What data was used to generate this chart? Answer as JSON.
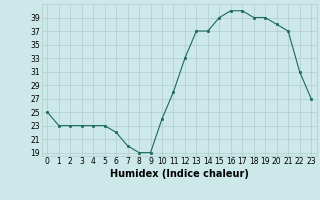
{
  "x": [
    0,
    1,
    2,
    3,
    4,
    5,
    6,
    7,
    8,
    9,
    10,
    11,
    12,
    13,
    14,
    15,
    16,
    17,
    18,
    19,
    20,
    21,
    22,
    23
  ],
  "y": [
    25,
    23,
    23,
    23,
    23,
    23,
    22,
    20,
    19,
    19,
    24,
    28,
    33,
    37,
    37,
    39,
    40,
    40,
    39,
    39,
    38,
    37,
    31,
    27
  ],
  "line_color": "#1a6b5a",
  "marker_color": "#1a6b5a",
  "bg_color": "#cce8e8",
  "grid_color": "#b0cccc",
  "xlabel": "Humidex (Indice chaleur)",
  "ylim": [
    18.5,
    41
  ],
  "xlim": [
    -0.5,
    23.5
  ],
  "yticks": [
    19,
    21,
    23,
    25,
    27,
    29,
    31,
    33,
    35,
    37,
    39
  ],
  "xticks": [
    0,
    1,
    2,
    3,
    4,
    5,
    6,
    7,
    8,
    9,
    10,
    11,
    12,
    13,
    14,
    15,
    16,
    17,
    18,
    19,
    20,
    21,
    22,
    23
  ],
  "xtick_labels": [
    "0",
    "1",
    "2",
    "3",
    "4",
    "5",
    "6",
    "7",
    "8",
    "9",
    "10",
    "11",
    "12",
    "13",
    "14",
    "15",
    "16",
    "17",
    "18",
    "19",
    "20",
    "21",
    "22",
    "23"
  ],
  "label_fontsize": 7,
  "tick_fontsize": 5.5
}
